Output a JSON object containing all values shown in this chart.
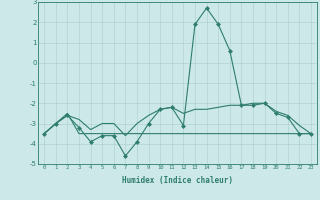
{
  "x": [
    0,
    1,
    2,
    3,
    4,
    5,
    6,
    7,
    8,
    9,
    10,
    11,
    12,
    13,
    14,
    15,
    16,
    17,
    18,
    19,
    20,
    21,
    22,
    23
  ],
  "line1": [
    -3.5,
    -3.0,
    -2.6,
    -3.2,
    -3.9,
    -3.6,
    -3.6,
    -4.6,
    -3.9,
    -3.0,
    -2.3,
    -2.2,
    -3.1,
    1.9,
    2.7,
    1.9,
    0.6,
    -2.1,
    -2.1,
    -2.0,
    -2.5,
    -2.7,
    -3.5,
    -3.5
  ],
  "line2": [
    -3.5,
    -3.0,
    -2.6,
    -2.8,
    -3.3,
    -3.0,
    -3.0,
    -3.6,
    -3.0,
    -2.6,
    -2.3,
    -2.2,
    -2.5,
    -2.3,
    -2.3,
    -2.2,
    -2.1,
    -2.1,
    -2.0,
    -2.0,
    -2.4,
    -2.6,
    -3.1,
    -3.5
  ],
  "line3": [
    -3.5,
    -3.0,
    -2.5,
    -3.5,
    -3.5,
    -3.5,
    -3.5,
    -3.5,
    -3.5,
    -3.5,
    -3.5,
    -3.5,
    -3.5,
    -3.5,
    -3.5,
    -3.5,
    -3.5,
    -3.5,
    -3.5,
    -3.5,
    -3.5,
    -3.5,
    -3.5,
    -3.5
  ],
  "color": "#2e7d6e",
  "background": "#cce8e8",
  "grid_color": "#aacccc",
  "ylim": [
    -5,
    3
  ],
  "xlim": [
    -0.5,
    23.5
  ],
  "xlabel": "Humidex (Indice chaleur)",
  "xticks": [
    0,
    1,
    2,
    3,
    4,
    5,
    6,
    7,
    8,
    9,
    10,
    11,
    12,
    13,
    14,
    15,
    16,
    17,
    18,
    19,
    20,
    21,
    22,
    23
  ],
  "yticks": [
    -5,
    -4,
    -3,
    -2,
    -1,
    0,
    1,
    2,
    3
  ]
}
